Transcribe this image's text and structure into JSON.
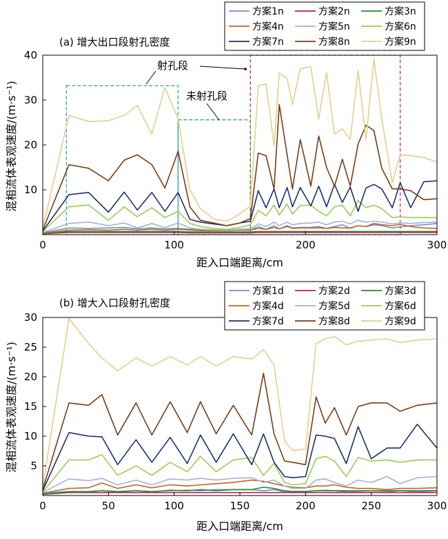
{
  "chart_data": [
    {
      "type": "line",
      "title": "(a) 增大出口段射孔密度",
      "xlabel": "距入口端距离/cm",
      "ylabel": "混相流体表观速度/(m·s⁻¹)",
      "xlim": [
        0,
        300
      ],
      "ylim": [
        0,
        40
      ],
      "xticks": [
        0,
        100,
        200,
        300
      ],
      "yticks": [
        10,
        20,
        30,
        40
      ],
      "grid": false,
      "legend_position": "top-right",
      "x": [
        0,
        20,
        35,
        50,
        62,
        72,
        83,
        93,
        103,
        112,
        120,
        130,
        140,
        150,
        158,
        164,
        170,
        176,
        180,
        186,
        190,
        196,
        204,
        210,
        216,
        222,
        228,
        234,
        240,
        246,
        252,
        258,
        266,
        272,
        280,
        290,
        300
      ],
      "series": [
        {
          "name": "方案1n",
          "color": "#6b8fd6",
          "values": [
            0.4,
            1.5,
            1.4,
            1.5,
            1.6,
            1.3,
            1.5,
            1.3,
            1.4,
            1.2,
            1.1,
            1.0,
            0.9,
            1.0,
            1.0,
            1.8,
            1.2,
            2.0,
            1.3,
            2.0,
            1.5,
            1.6,
            1.6,
            1.8,
            1.4,
            1.8,
            2.2,
            1.4,
            2.0,
            1.8,
            2.2,
            2.0,
            1.5,
            1.7,
            2.0,
            2.2,
            2.5
          ]
        },
        {
          "name": "方案2n",
          "color": "#c8185a",
          "values": [
            0.2,
            0.5,
            0.5,
            0.5,
            0.5,
            0.5,
            0.5,
            0.5,
            0.5,
            0.4,
            0.4,
            0.4,
            0.4,
            0.4,
            0.4,
            0.5,
            0.5,
            0.5,
            0.5,
            0.5,
            0.5,
            0.5,
            0.5,
            0.5,
            0.5,
            0.5,
            0.5,
            0.5,
            0.5,
            0.5,
            0.5,
            0.5,
            0.5,
            0.5,
            0.5,
            0.5,
            0.5
          ]
        },
        {
          "name": "方案3n",
          "color": "#1e8c2a",
          "values": [
            0.2,
            0.7,
            0.7,
            0.7,
            0.7,
            0.7,
            0.7,
            0.7,
            0.7,
            0.6,
            0.6,
            0.6,
            0.6,
            0.6,
            0.6,
            0.7,
            0.7,
            0.7,
            0.7,
            0.7,
            0.7,
            0.7,
            0.7,
            0.7,
            0.7,
            0.7,
            0.7,
            0.7,
            0.7,
            0.7,
            0.7,
            0.7,
            0.7,
            0.7,
            0.7,
            0.7,
            0.7
          ]
        },
        {
          "name": "方案4n",
          "color": "#c9601c",
          "values": [
            0.3,
            1.0,
            1.1,
            1.0,
            1.2,
            1.0,
            1.2,
            1.0,
            1.2,
            1.0,
            0.9,
            0.9,
            0.9,
            1.0,
            1.0,
            1.4,
            1.2,
            1.6,
            1.3,
            1.8,
            1.4,
            1.5,
            1.5,
            1.5,
            1.4,
            1.6,
            1.5,
            1.5,
            2.0,
            1.8,
            2.5,
            2.2,
            2.0,
            2.3,
            1.8,
            1.5,
            1.4
          ]
        },
        {
          "name": "方案5n",
          "color": "#9fb2d8",
          "values": [
            0.5,
            2.5,
            2.8,
            2.0,
            2.6,
            1.5,
            2.5,
            1.6,
            2.6,
            1.5,
            1.2,
            1.1,
            1.0,
            1.2,
            1.3,
            2.4,
            1.8,
            2.8,
            2.0,
            2.8,
            2.2,
            2.5,
            2.6,
            2.8,
            2.2,
            2.8,
            3.0,
            2.4,
            3.2,
            2.8,
            3.0,
            2.8,
            2.4,
            2.6,
            2.5,
            2.7,
            2.8
          ]
        },
        {
          "name": "方案6n",
          "color": "#9ccc50",
          "values": [
            0.7,
            6.2,
            6.6,
            3.2,
            6.2,
            4.0,
            6.0,
            3.8,
            5.2,
            2.5,
            1.8,
            1.4,
            1.2,
            1.6,
            2.2,
            5.4,
            4.2,
            6.6,
            4.4,
            6.8,
            4.6,
            6.5,
            6.6,
            5.2,
            4.2,
            6.2,
            6.6,
            4.2,
            7.6,
            6.0,
            6.6,
            5.8,
            3.8,
            4.0,
            3.8,
            3.8,
            3.8
          ]
        },
        {
          "name": "方案7n",
          "color": "#1b2e6e",
          "values": [
            0.8,
            8.9,
            9.4,
            5.0,
            9.5,
            5.5,
            9.4,
            5.2,
            9.4,
            3.4,
            2.8,
            2.4,
            2.0,
            2.6,
            3.0,
            9.8,
            6.0,
            10.2,
            6.0,
            10.5,
            6.2,
            10.5,
            6.4,
            10.8,
            6.2,
            11.2,
            7.2,
            10.6,
            5.2,
            10.4,
            11.2,
            10.2,
            6.0,
            11.6,
            6.0,
            11.8,
            12.0
          ]
        },
        {
          "name": "方案8n",
          "color": "#7a3a14",
          "values": [
            1.0,
            15.6,
            14.8,
            12.0,
            16.6,
            17.8,
            15.6,
            10.4,
            18.6,
            6.2,
            3.2,
            2.6,
            2.0,
            2.6,
            3.6,
            18.2,
            17.6,
            10.2,
            29.0,
            17.8,
            10.2,
            21.2,
            10.8,
            22.0,
            15.0,
            10.8,
            16.8,
            10.8,
            20.2,
            24.4,
            23.2,
            14.8,
            10.2,
            10.2,
            9.8,
            7.8,
            8.0
          ]
        },
        {
          "name": "方案9n",
          "color": "#e2d08a",
          "values": [
            1.4,
            26.6,
            25.2,
            25.4,
            26.6,
            28.8,
            22.4,
            32.8,
            25.8,
            10.0,
            5.8,
            3.5,
            3.0,
            4.6,
            6.4,
            33.2,
            33.6,
            19.8,
            36.0,
            34.8,
            29.0,
            37.0,
            37.4,
            25.8,
            36.2,
            22.4,
            23.6,
            21.2,
            36.6,
            21.2,
            39.2,
            25.8,
            11.6,
            17.8,
            17.6,
            17.2,
            16.2
          ]
        }
      ],
      "annotations": [
        {
          "text": "射孔段",
          "box": {
            "x": [
              158,
              272
            ],
            "y": [
              0,
              40
            ],
            "color": "#e0303a"
          }
        },
        {
          "text": "未射孔段",
          "box": {
            "x": [
              103,
              158
            ],
            "y": [
              0,
              25.6
            ],
            "color": "#2aa04a"
          }
        },
        {
          "text": "",
          "box": {
            "x": [
              18,
              103
            ],
            "y": [
              0,
              33.2
            ],
            "color": "#3a9ad8"
          }
        }
      ]
    },
    {
      "type": "line",
      "title": "(b) 增大入口段射孔密度",
      "xlabel": "距入口端距离/cm",
      "ylabel": "混相流体表观速度/(m·s⁻¹)",
      "xlim": [
        0,
        300
      ],
      "ylim": [
        0,
        30
      ],
      "xticks": [
        0,
        50,
        100,
        150,
        200,
        250,
        300
      ],
      "yticks": [
        5,
        10,
        15,
        20,
        25,
        30
      ],
      "grid": false,
      "legend_position": "top-right",
      "x": [
        0,
        20,
        35,
        45,
        57,
        71,
        83,
        97,
        110,
        120,
        132,
        145,
        159,
        168,
        176,
        184,
        190,
        200,
        208,
        215,
        222,
        231,
        240,
        250,
        262,
        272,
        285,
        300
      ],
      "series": [
        {
          "name": "方案1d",
          "color": "#6b8fd6",
          "values": [
            0.4,
            0.7,
            0.7,
            0.8,
            0.7,
            0.8,
            0.7,
            0.8,
            0.9,
            0.8,
            1.0,
            1.0,
            1.0,
            0.8,
            1.0,
            0.6,
            0.6,
            0.6,
            0.8,
            0.9,
            0.8,
            0.6,
            0.6,
            0.5,
            0.6,
            0.8,
            0.6,
            0.8
          ]
        },
        {
          "name": "方案2d",
          "color": "#c8185a",
          "values": [
            0.2,
            0.5,
            0.5,
            0.5,
            0.5,
            0.5,
            0.5,
            0.5,
            0.5,
            0.5,
            0.5,
            0.5,
            0.5,
            0.5,
            0.5,
            0.5,
            0.5,
            0.5,
            0.5,
            0.5,
            0.5,
            0.5,
            0.5,
            0.5,
            0.5,
            0.5,
            0.5,
            0.5
          ]
        },
        {
          "name": "方案3d",
          "color": "#1e8c2a",
          "values": [
            0.2,
            0.6,
            0.6,
            0.8,
            0.6,
            0.8,
            0.6,
            0.9,
            0.8,
            1.0,
            0.8,
            1.0,
            1.0,
            1.4,
            1.2,
            0.8,
            0.7,
            0.7,
            0.8,
            0.8,
            0.8,
            0.8,
            0.8,
            0.8,
            0.8,
            0.8,
            0.8,
            0.8
          ]
        },
        {
          "name": "方案4d",
          "color": "#c9601c",
          "values": [
            0.4,
            1.2,
            1.3,
            2.1,
            1.2,
            1.8,
            1.3,
            1.8,
            1.6,
            1.8,
            2.0,
            2.2,
            2.6,
            2.4,
            2.0,
            1.6,
            1.4,
            1.3,
            1.6,
            1.6,
            1.8,
            1.4,
            1.2,
            1.2,
            1.0,
            1.2,
            1.2,
            1.3
          ]
        },
        {
          "name": "方案5d",
          "color": "#9fb2d8",
          "values": [
            0.5,
            2.8,
            2.5,
            2.9,
            1.8,
            2.6,
            1.8,
            2.8,
            2.6,
            2.9,
            2.6,
            2.9,
            3.0,
            2.2,
            2.6,
            1.6,
            1.2,
            1.2,
            2.6,
            2.8,
            2.2,
            1.6,
            2.6,
            2.2,
            3.2,
            2.0,
            3.0,
            3.2
          ]
        },
        {
          "name": "方案6d",
          "color": "#9ccc50",
          "values": [
            0.6,
            6.0,
            6.0,
            6.9,
            3.4,
            5.0,
            3.4,
            5.6,
            4.0,
            6.6,
            4.0,
            6.0,
            6.4,
            3.4,
            5.4,
            2.2,
            1.8,
            2.0,
            6.2,
            6.6,
            5.8,
            3.2,
            6.4,
            5.8,
            6.0,
            5.6,
            6.0,
            6.0
          ]
        },
        {
          "name": "方案7d",
          "color": "#1b2e6e",
          "values": [
            0.8,
            10.6,
            10.0,
            9.9,
            5.2,
            9.4,
            5.6,
            9.8,
            5.4,
            10.2,
            5.6,
            10.4,
            5.2,
            10.4,
            5.6,
            3.2,
            3.0,
            3.2,
            10.2,
            10.0,
            9.6,
            5.4,
            11.6,
            6.2,
            8.0,
            8.0,
            12.0,
            8.0
          ]
        },
        {
          "name": "方案8d",
          "color": "#7a3a14",
          "values": [
            1.0,
            15.6,
            15.2,
            17.0,
            10.2,
            15.6,
            10.2,
            15.8,
            10.6,
            15.8,
            10.4,
            15.2,
            10.2,
            20.6,
            10.4,
            5.8,
            5.6,
            5.2,
            16.6,
            12.2,
            14.8,
            10.2,
            15.0,
            15.6,
            15.6,
            14.2,
            15.2,
            15.6
          ]
        },
        {
          "name": "方案9d",
          "color": "#e2d08a",
          "values": [
            1.4,
            29.8,
            25.6,
            23.2,
            21.0,
            23.2,
            21.8,
            23.4,
            22.0,
            23.4,
            21.8,
            23.4,
            23.0,
            24.6,
            22.0,
            9.2,
            7.6,
            7.8,
            25.6,
            26.4,
            26.8,
            25.4,
            26.0,
            26.2,
            26.4,
            25.8,
            26.2,
            26.4
          ]
        }
      ]
    }
  ]
}
